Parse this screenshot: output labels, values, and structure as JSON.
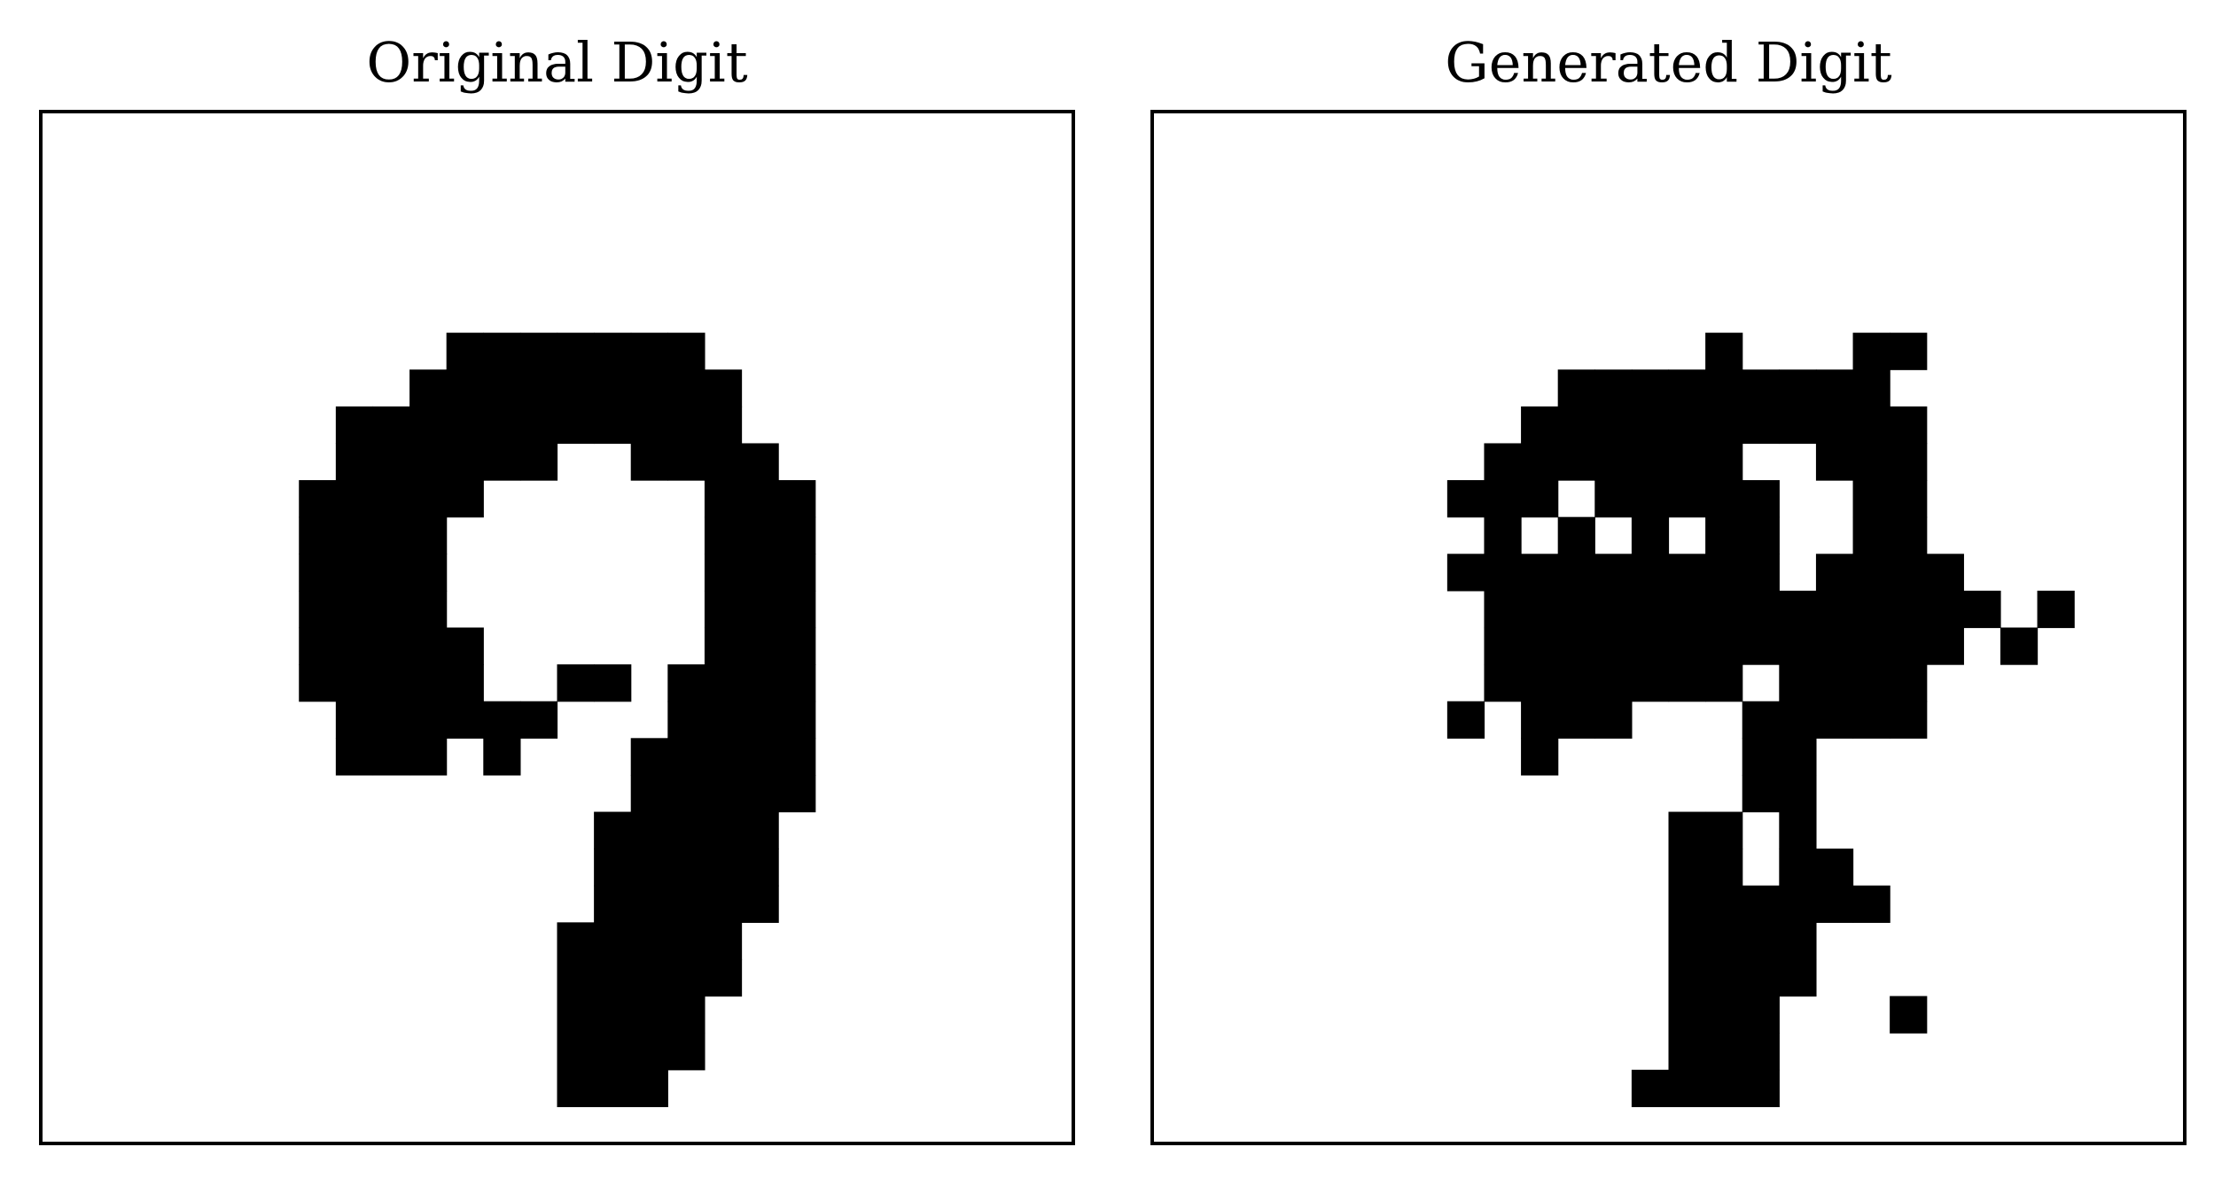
{
  "panels": [
    {
      "title": "Original Digit",
      "grid": [
        "............................",
        "............................",
        "............................",
        "............................",
        "............................",
        "............................",
        "...........#######..........",
        "..........#########.........",
        "........###########.........",
        "........######..####........",
        ".......#####......###.......",
        ".......####.......###.......",
        ".......####.......###.......",
        ".......####.......###.......",
        ".......#####......###.......",
        ".......#####..##.####.......",
        "........######...####.......",
        "........###.#...#####.......",
        "................#####.......",
        "...............#####........",
        "...............#####........",
        "...............#####........",
        "..............#####.........",
        "..............#####.........",
        "..............####..........",
        "..............####..........",
        "..............###...........",
        "............................"
      ]
    },
    {
      "title": "Generated Digit",
      "grid": [
        "............................",
        "............................",
        "............................",
        "............................",
        "............................",
        "............................",
        "...............#...##.......",
        "...........#########........",
        "..........###########.......",
        ".........#######..###.......",
        "........###.#####..##.......",
        ".........#.#.#.##..##.......",
        "........#########.####......",
        ".........##############.#...",
        ".........#############.#....",
        ".........#######.####.......",
        "........#.###...#####.......",
        "..........#.....##..........",
        "................##..........",
        "..............##.#..........",
        "..............##.##.........",
        "..............######........",
        "..............####..........",
        "..............####..........",
        "..............###...#.......",
        "..............###...........",
        ".............####...........",
        "............................"
      ]
    }
  ]
}
